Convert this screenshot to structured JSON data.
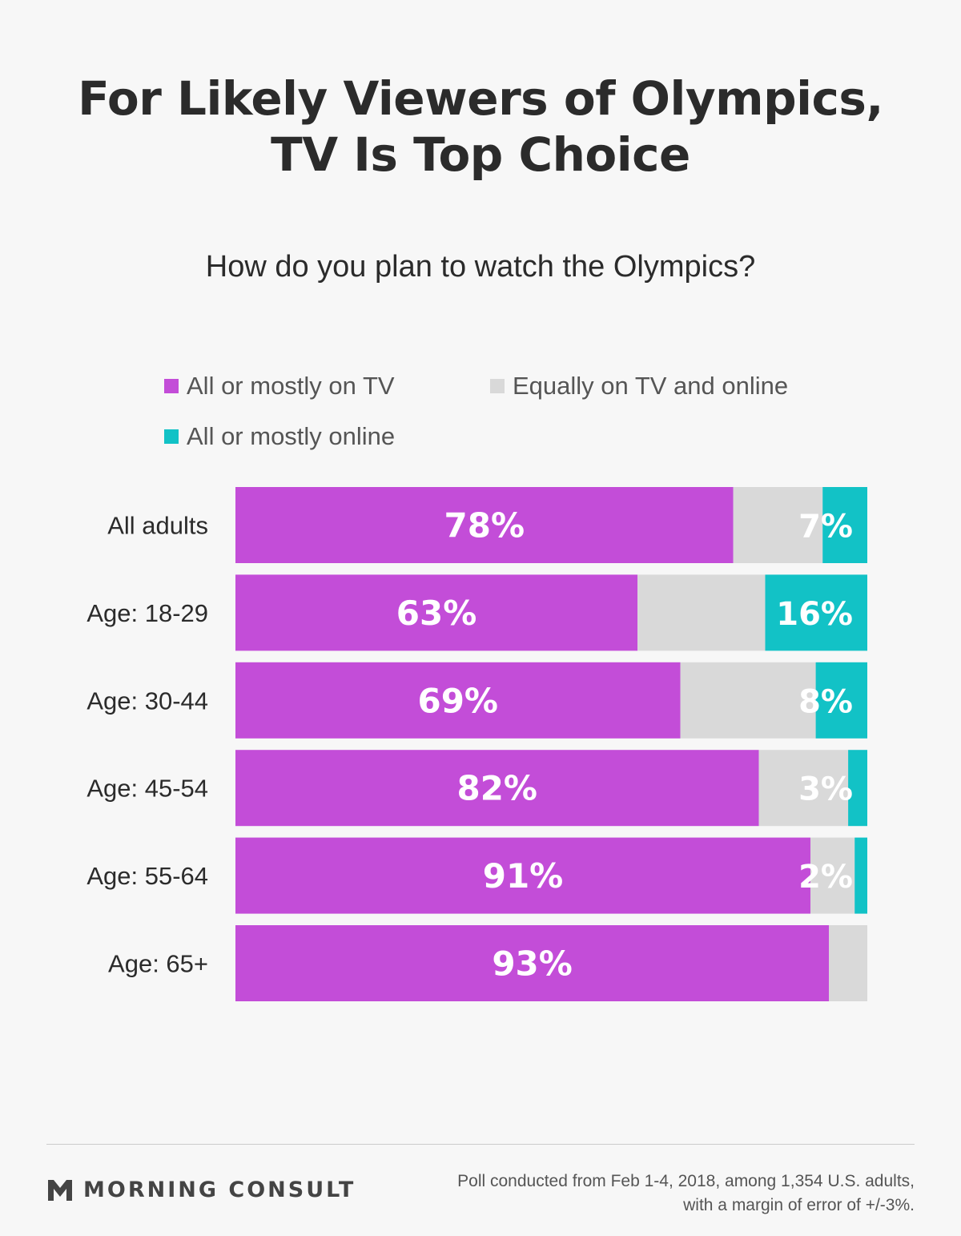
{
  "header": {
    "title_line1": "For Likely Viewers of Olympics,",
    "title_line2": "TV Is Top Choice"
  },
  "legend": {
    "items": [
      {
        "label": "All or mostly on TV",
        "color": "#c34dd8"
      },
      {
        "label": "Equally on TV and online",
        "color": "#d9d9d9"
      },
      {
        "label": "All or mostly online",
        "color": "#12c2c6"
      }
    ]
  },
  "colors": {
    "tv": "#c34dd8",
    "equal": "#d9d9d9",
    "online": "#12c2c6",
    "bar_label": "#ffffff",
    "category_label": "#2b2b2b"
  },
  "chart_data": {
    "type": "bar",
    "orientation": "horizontal",
    "stacked": true,
    "normalized": true,
    "title": "How do you plan to watch the Olympics?",
    "categories": [
      "All adults",
      "Age: 18-29",
      "Age: 30-44",
      "Age: 45-54",
      "Age: 55-64",
      "Age: 65+"
    ],
    "series": [
      {
        "name": "All or mostly on TV",
        "values": [
          78,
          63,
          69,
          82,
          91,
          93
        ],
        "labels": [
          "78%",
          "63%",
          "69%",
          "82%",
          "91%",
          "93%"
        ]
      },
      {
        "name": "Equally on TV and online",
        "values": [
          14,
          20,
          21,
          14,
          7,
          6
        ],
        "labels": [
          "",
          "",
          "",
          "",
          "",
          ""
        ]
      },
      {
        "name": "All or mostly online",
        "values": [
          7,
          16,
          8,
          3,
          2,
          0
        ],
        "labels": [
          "7%",
          "16%",
          "8%",
          "3%",
          "2%",
          ""
        ]
      }
    ],
    "xlim": [
      0,
      100
    ],
    "grid": false,
    "legend_position": "top"
  },
  "footer": {
    "brand": "MORNING CONSULT",
    "note_line1": "Poll conducted from Feb 1-4, 2018, among 1,354 U.S. adults,",
    "note_line2": "with a margin of error of +/-3%."
  }
}
